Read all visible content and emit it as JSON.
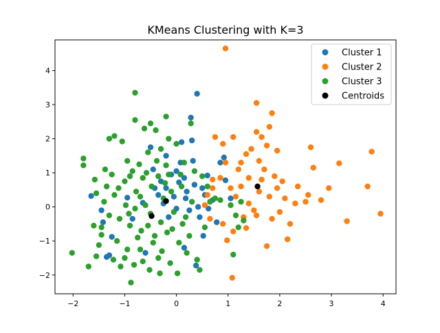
{
  "chart_data": {
    "type": "scatter",
    "title": "KMeans Clustering with K=3",
    "xlabel": "",
    "ylabel": "",
    "xlim": [
      -2.35,
      4.25
    ],
    "ylim": [
      -2.55,
      4.9
    ],
    "xticks": [
      -2,
      -1,
      0,
      1,
      2,
      3,
      4
    ],
    "yticks": [
      -2,
      -1,
      0,
      1,
      2,
      3,
      4
    ],
    "legend_position": "upper right",
    "grid": false,
    "series": [
      {
        "name": "Cluster 1",
        "color": "#1f77b4",
        "points": [
          [
            -1.65,
            0.32
          ],
          [
            -1.45,
            -0.1
          ],
          [
            -1.42,
            -0.45
          ],
          [
            -1.35,
            -1.47
          ],
          [
            -1.3,
            -1.42
          ],
          [
            -1.25,
            -0.88
          ],
          [
            -0.95,
            0.27
          ],
          [
            -0.85,
            -0.35
          ],
          [
            -0.65,
            0.12
          ],
          [
            -0.5,
            1.75
          ],
          [
            -0.45,
            1.1
          ],
          [
            -0.42,
            0.55
          ],
          [
            -0.35,
            0.35
          ],
          [
            -0.3,
            0.75
          ],
          [
            -0.25,
            0.1
          ],
          [
            -0.2,
            1.5
          ],
          [
            -0.2,
            0.55
          ],
          [
            -0.15,
            -0.3
          ],
          [
            -0.1,
            0.95
          ],
          [
            -0.05,
            0.3
          ],
          [
            0.0,
            1.05
          ],
          [
            0.0,
            -0.05
          ],
          [
            0.05,
            0.72
          ],
          [
            0.08,
            1.3
          ],
          [
            0.1,
            1.9
          ],
          [
            0.15,
            0.85
          ],
          [
            0.18,
            0.25
          ],
          [
            0.2,
            0.45
          ],
          [
            0.25,
            -0.1
          ],
          [
            0.28,
            2.62
          ],
          [
            0.32,
            1.35
          ],
          [
            0.35,
            0.65
          ],
          [
            0.38,
            -1.72
          ],
          [
            0.4,
            3.32
          ],
          [
            0.42,
            0.0
          ],
          [
            0.45,
            -0.3
          ],
          [
            0.5,
            0.55
          ],
          [
            0.52,
            -0.85
          ],
          [
            0.55,
            0.35
          ],
          [
            0.6,
            0.92
          ],
          [
            0.62,
            -0.05
          ],
          [
            0.7,
            0.2
          ],
          [
            0.85,
            1.3
          ],
          [
            0.92,
            1.45
          ],
          [
            0.95,
            0.78
          ],
          [
            1.05,
            0.25
          ],
          [
            0.78,
            -0.45
          ],
          [
            0.3,
            1.95
          ],
          [
            -0.6,
            -1.35
          ],
          [
            0.15,
            -1.2
          ]
        ]
      },
      {
        "name": "Cluster 2",
        "color": "#ff7f0e",
        "points": [
          [
            0.95,
            4.65
          ],
          [
            1.55,
            3.05
          ],
          [
            1.85,
            2.75
          ],
          [
            1.8,
            2.35
          ],
          [
            1.65,
            2.05
          ],
          [
            1.55,
            2.2
          ],
          [
            1.45,
            1.7
          ],
          [
            1.35,
            1.55
          ],
          [
            1.25,
            1.3
          ],
          [
            1.2,
            1.1
          ],
          [
            1.1,
            2.05
          ],
          [
            0.95,
            1.3
          ],
          [
            0.9,
            1.85
          ],
          [
            0.75,
            2.05
          ],
          [
            0.85,
            0.85
          ],
          [
            0.7,
            0.55
          ],
          [
            0.6,
            0.35
          ],
          [
            0.55,
            0.05
          ],
          [
            0.65,
            -0.35
          ],
          [
            0.9,
            -0.5
          ],
          [
            0.98,
            -0.98
          ],
          [
            1.1,
            -0.72
          ],
          [
            1.05,
            0.55
          ],
          [
            1.15,
            0.3
          ],
          [
            1.25,
            0.6
          ],
          [
            1.3,
            -0.3
          ],
          [
            1.35,
            -0.62
          ],
          [
            1.4,
            0.1
          ],
          [
            1.5,
            -0.1
          ],
          [
            1.55,
            -0.25
          ],
          [
            1.6,
            0.45
          ],
          [
            1.65,
            0.8
          ],
          [
            1.7,
            1.1
          ],
          [
            1.75,
            -1.15
          ],
          [
            1.8,
            0.3
          ],
          [
            1.85,
            -0.35
          ],
          [
            1.9,
            0.9
          ],
          [
            1.95,
            0.55
          ],
          [
            2.0,
            -0.15
          ],
          [
            2.05,
            0.75
          ],
          [
            2.1,
            0.25
          ],
          [
            2.2,
            -0.5
          ],
          [
            2.15,
            -0.95
          ],
          [
            2.3,
            0.1
          ],
          [
            2.35,
            0.6
          ],
          [
            2.5,
            0.15
          ],
          [
            2.55,
            0.35
          ],
          [
            2.6,
            1.75
          ],
          [
            2.65,
            1.15
          ],
          [
            2.8,
            0.2
          ],
          [
            2.95,
            0.55
          ],
          [
            3.15,
            1.28
          ],
          [
            3.3,
            -0.42
          ],
          [
            3.7,
            0.6
          ],
          [
            3.78,
            1.62
          ],
          [
            3.95,
            -0.2
          ],
          [
            1.95,
            1.65
          ],
          [
            1.75,
            1.8
          ],
          [
            1.6,
            1.35
          ],
          [
            1.4,
            0.85
          ],
          [
            1.08,
            -2.08
          ],
          [
            0.7,
            0.8
          ]
        ]
      },
      {
        "name": "Cluster 3",
        "color": "#2ca02c",
        "points": [
          [
            -2.02,
            -1.35
          ],
          [
            -1.8,
            1.42
          ],
          [
            -1.8,
            1.22
          ],
          [
            -1.6,
            -0.55
          ],
          [
            -1.55,
            0.4
          ],
          [
            -1.55,
            -1.45
          ],
          [
            -1.5,
            -1.12
          ],
          [
            -1.45,
            -0.82
          ],
          [
            -1.4,
            0.15
          ],
          [
            -1.35,
            0.6
          ],
          [
            -1.3,
            -0.25
          ],
          [
            -1.3,
            2.0
          ],
          [
            -1.25,
            0.95
          ],
          [
            -1.2,
            2.08
          ],
          [
            -1.15,
            -1.0
          ],
          [
            -1.1,
            -0.35
          ],
          [
            -1.05,
            1.92
          ],
          [
            -1.0,
            0.75
          ],
          [
            -0.95,
            -1.25
          ],
          [
            -0.95,
            1.35
          ],
          [
            -0.9,
            -0.55
          ],
          [
            -0.88,
            -2.22
          ],
          [
            -0.85,
            1.05
          ],
          [
            -0.8,
            2.55
          ],
          [
            -0.8,
            3.35
          ],
          [
            -0.75,
            -0.9
          ],
          [
            -0.72,
            1.25
          ],
          [
            -0.7,
            0.3
          ],
          [
            -0.65,
            -1.6
          ],
          [
            -0.62,
            2.3
          ],
          [
            -0.6,
            0.05
          ],
          [
            -0.55,
            1.6
          ],
          [
            -0.5,
            -0.2
          ],
          [
            -0.48,
            0.6
          ],
          [
            -0.45,
            -1.05
          ],
          [
            -0.4,
            2.25
          ],
          [
            -0.38,
            1.35
          ],
          [
            -0.35,
            0.9
          ],
          [
            -0.3,
            -0.45
          ],
          [
            -0.28,
            -1.3
          ],
          [
            -0.25,
            0.25
          ],
          [
            -0.2,
            1.22
          ],
          [
            -0.18,
            -0.75
          ],
          [
            -0.15,
            2.0
          ],
          [
            -0.12,
            -1.65
          ],
          [
            -0.1,
            0.45
          ],
          [
            -0.05,
            -0.15
          ],
          [
            0.0,
            1.85
          ],
          [
            0.05,
            -1.05
          ],
          [
            0.1,
            0.6
          ],
          [
            0.12,
            -0.5
          ],
          [
            0.15,
            1.3
          ],
          [
            0.2,
            -1.35
          ],
          [
            0.25,
            -0.85
          ],
          [
            0.28,
            2.45
          ],
          [
            0.3,
            0.15
          ],
          [
            0.35,
            1.05
          ],
          [
            0.4,
            -1.55
          ],
          [
            0.45,
            -1.85
          ],
          [
            0.5,
            0.9
          ],
          [
            0.55,
            -0.6
          ],
          [
            0.6,
            0.6
          ],
          [
            0.65,
            0.15
          ],
          [
            0.75,
            0.25
          ],
          [
            0.85,
            0.2
          ],
          [
            1.05,
            0.05
          ],
          [
            1.1,
            -1.4
          ],
          [
            1.15,
            -0.25
          ],
          [
            1.2,
            -0.6
          ],
          [
            1.3,
            -0.4
          ],
          [
            1.25,
            0.15
          ],
          [
            -1.7,
            -1.75
          ],
          [
            -1.58,
            0.8
          ],
          [
            -1.45,
            -0.6
          ],
          [
            -1.38,
            1.1
          ],
          [
            -1.22,
            -1.55
          ],
          [
            -1.12,
            0.55
          ],
          [
            -1.08,
            -1.75
          ],
          [
            -0.98,
            0.05
          ],
          [
            -0.92,
            -0.2
          ],
          [
            -0.82,
            -1.7
          ],
          [
            -0.78,
            0.45
          ],
          [
            -0.68,
            -0.7
          ],
          [
            -0.58,
            1.0
          ],
          [
            -0.52,
            -1.85
          ],
          [
            -0.42,
            -0.85
          ],
          [
            -0.32,
            -1.95
          ],
          [
            -0.22,
            0.7
          ],
          [
            -0.08,
            -0.65
          ],
          [
            0.02,
            -1.95
          ],
          [
            0.08,
            0.95
          ],
          [
            0.18,
            -0.3
          ],
          [
            -0.5,
            2.45
          ],
          [
            -0.2,
            2.65
          ],
          [
            -0.65,
            0.85
          ],
          [
            -0.8,
            -0.05
          ],
          [
            -1.0,
            -1.5
          ],
          [
            -0.55,
            -0.55
          ],
          [
            -0.35,
            -1.5
          ],
          [
            -0.15,
            0.95
          ],
          [
            -0.7,
            -1.25
          ],
          [
            -1.2,
            0.35
          ],
          [
            -0.3,
            1.7
          ],
          [
            -0.9,
            0.9
          ]
        ]
      },
      {
        "name": "Centroids",
        "color": "#000000",
        "points": [
          [
            -0.48,
            -0.27
          ],
          [
            -0.2,
            0.17
          ],
          [
            1.57,
            0.6
          ]
        ]
      }
    ]
  }
}
